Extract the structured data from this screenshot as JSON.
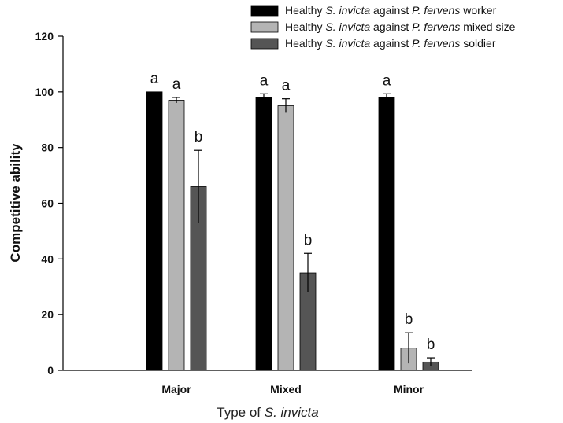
{
  "chart_data": {
    "type": "bar",
    "categories": [
      "Major",
      "Mixed",
      "Minor"
    ],
    "series": [
      {
        "name_parts": [
          "Healthy ",
          "S. invicta",
          " against ",
          "P. fervens",
          " worker"
        ],
        "color": "#000000",
        "values": [
          100,
          98,
          98
        ],
        "errors": [
          0,
          1.3,
          1.3
        ],
        "letters": [
          "a",
          "a",
          "a"
        ]
      },
      {
        "name_parts": [
          "Healthy ",
          "S. invicta",
          " against ",
          "P. fervens",
          " mixed size"
        ],
        "color": "#b4b4b4",
        "values": [
          97,
          95,
          8
        ],
        "errors": [
          1,
          2.5,
          5.5
        ],
        "letters": [
          "a",
          "a",
          "b"
        ]
      },
      {
        "name_parts": [
          "Healthy ",
          "S. invicta",
          " against ",
          "P. fervens",
          " soldier"
        ],
        "color": "#555555",
        "values": [
          66,
          35,
          3
        ],
        "errors": [
          13,
          7,
          1.5
        ],
        "letters": [
          "b",
          "b",
          "b"
        ]
      }
    ],
    "y_ticks": [
      "0",
      "20",
      "40",
      "60",
      "80",
      "100",
      "120"
    ],
    "ylim": [
      0,
      120
    ],
    "ylabel": "Competitive ability",
    "xlabel_parts": [
      "Type of ",
      "S. invicta"
    ],
    "grid": false,
    "legend_position": "top-right"
  }
}
